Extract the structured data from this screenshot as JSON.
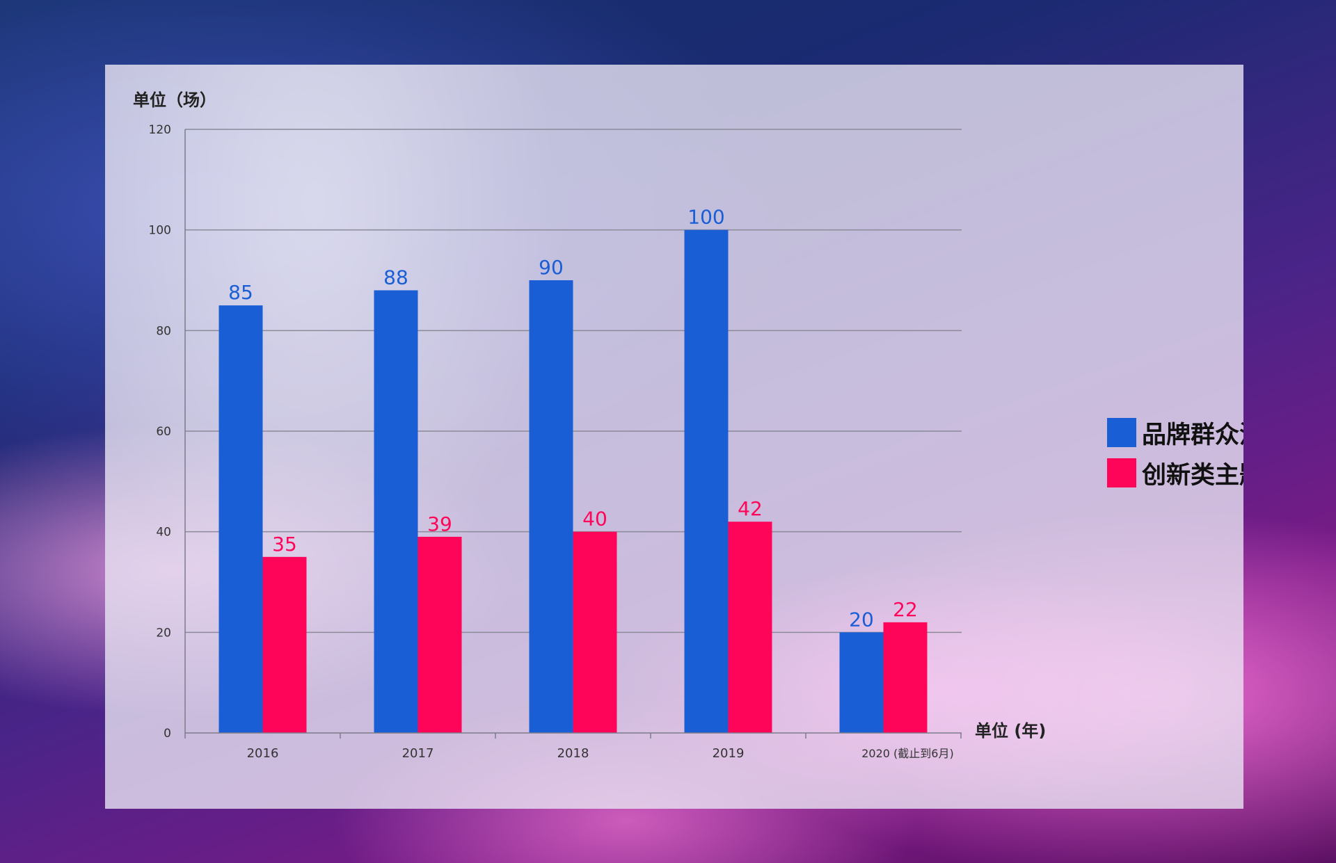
{
  "chart_data": {
    "type": "bar",
    "ylabel": "单位（场）",
    "xlabel": "单位 (年)",
    "categories": [
      "2016",
      "2017",
      "2018",
      "2019",
      "2020 (截止到6月)"
    ],
    "series": [
      {
        "name": "品牌群众活动演出场次",
        "color": "#1a5ed6",
        "values": [
          85,
          88,
          90,
          100,
          20
        ]
      },
      {
        "name": "创新类主题活动场次",
        "color": "#ff0559",
        "values": [
          35,
          39,
          40,
          42,
          22
        ]
      }
    ],
    "ylim": [
      0,
      120
    ],
    "yticks": [
      "0",
      "20",
      "40",
      "60",
      "80",
      "100",
      "120"
    ],
    "grid": true,
    "legend_position": "right"
  }
}
